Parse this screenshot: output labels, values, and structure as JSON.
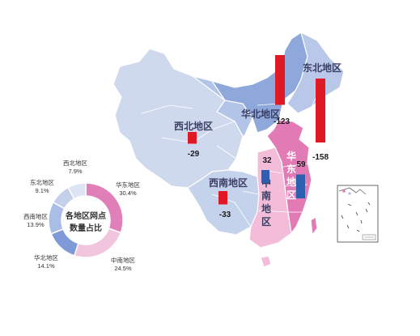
{
  "map": {
    "regions": [
      {
        "id": "dongbei",
        "label": "东北地区",
        "value": -123,
        "value_label": "-123",
        "bar_color": "#e01a24"
      },
      {
        "id": "huabei",
        "label": "华北地区",
        "value": -158,
        "value_label": "-158",
        "bar_color": "#e01a24"
      },
      {
        "id": "xibei",
        "label": "西北地区",
        "value": -29,
        "value_label": "-29",
        "bar_color": "#e01a24"
      },
      {
        "id": "xinan",
        "label": "西南地区",
        "value": -33,
        "value_label": "-33",
        "bar_color": "#e01a24"
      },
      {
        "id": "zhongnan",
        "label": "中南地区",
        "value": 32,
        "value_label": "32",
        "bar_color": "#2c5fb0"
      },
      {
        "id": "huadong",
        "label": "华东地区",
        "value": 59,
        "value_label": "59",
        "bar_color": "#2c5fb0"
      }
    ],
    "colors": {
      "west": "#cfd9ee",
      "north": "#8fa8dc",
      "northeast": "#b9c8e8",
      "east": "#e27bb5",
      "central_south": "#f3bcd9",
      "southwest": "#c5d2ec",
      "border": "#ffffff",
      "positive_bar": "#2c5fb0",
      "negative_bar": "#e01a24"
    }
  },
  "chart_data": {
    "type": "pie",
    "donut": true,
    "center_title": [
      "各地区网点",
      "数量占比"
    ],
    "categories": [
      "华东地区",
      "中南地区",
      "华北地区",
      "西南地区",
      "东北地区",
      "西北地区"
    ],
    "values": [
      30.4,
      24.5,
      14.1,
      13.9,
      9.1,
      7.9
    ],
    "value_labels": [
      "30.4%",
      "24.5%",
      "14.1%",
      "13.9%",
      "9.1%",
      "7.9%"
    ],
    "colors": [
      "#e07fb8",
      "#f2c5de",
      "#7f9ad6",
      "#aabde6",
      "#c3cfeb",
      "#dde4f3"
    ]
  }
}
